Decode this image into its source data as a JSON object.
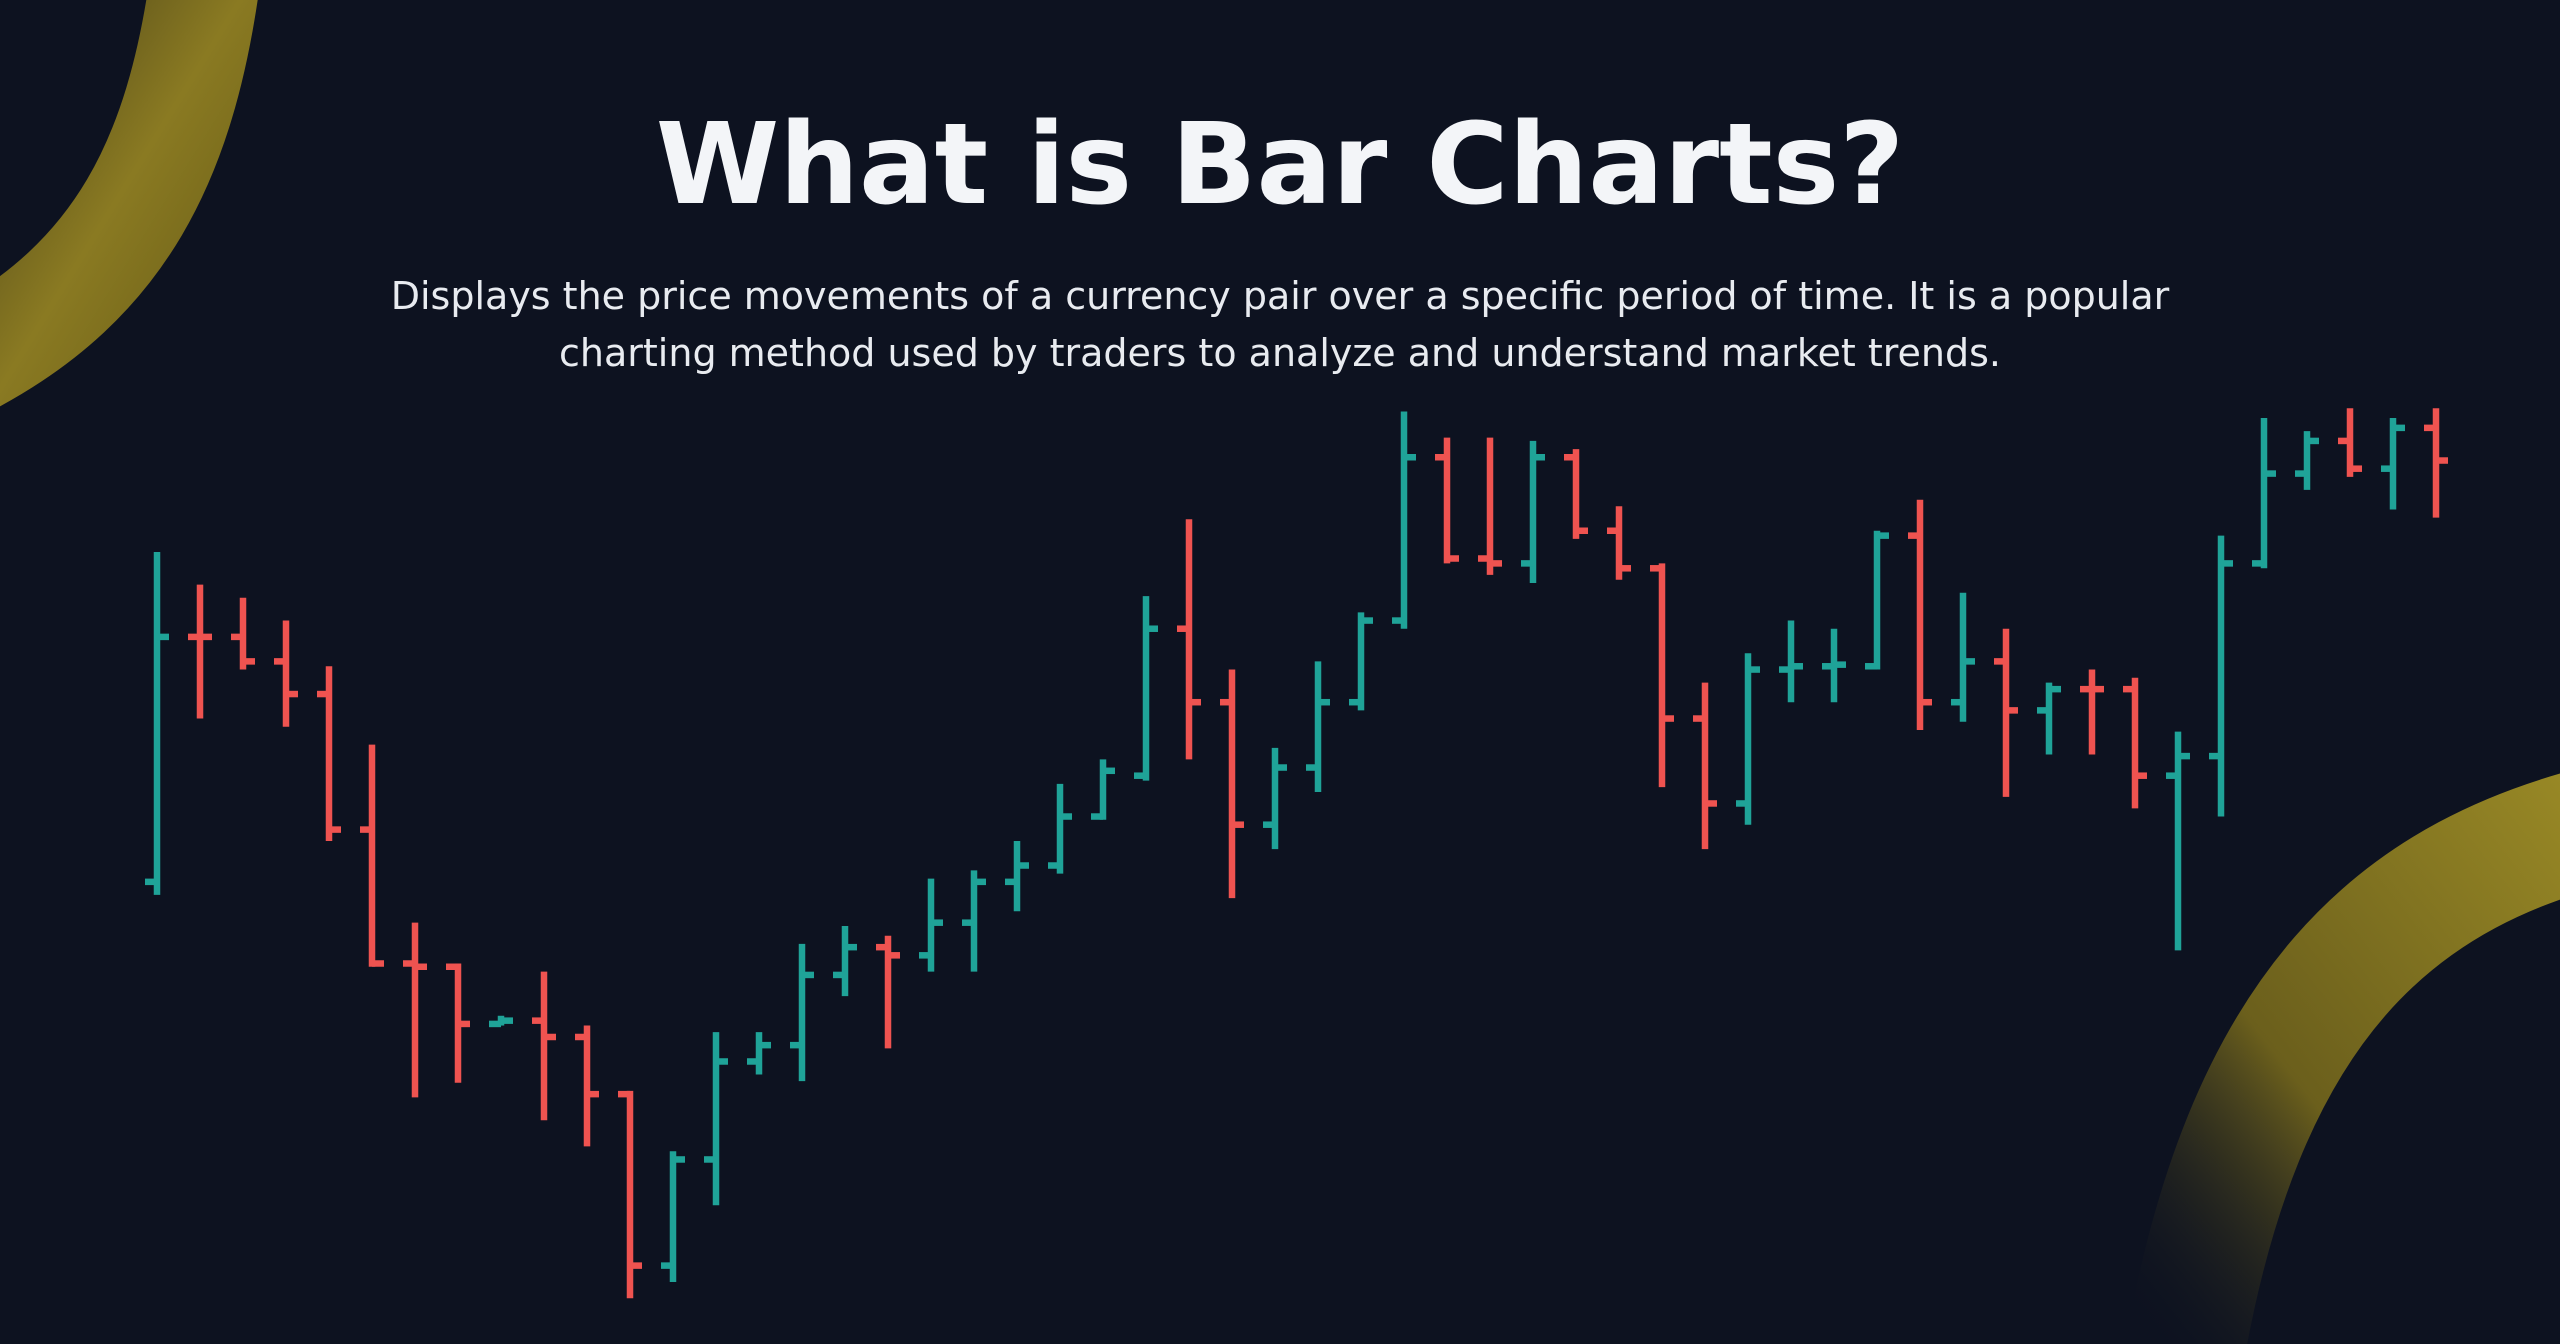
{
  "chart_data": {
    "type": "ohlc",
    "title": "What is Bar Charts?",
    "subtitle": "Displays the price movements of a currency pair over a specific period of time. It is a popular charting method used by traders to analyze and understand market trends.",
    "up_color": "#1fa398",
    "down_color": "#ef5350",
    "ylim": [
      0,
      823
    ],
    "open": [
      283,
      433,
      433,
      418,
      398,
      315,
      233,
      231,
      196,
      198,
      188,
      153,
      48,
      113,
      173,
      183,
      226,
      243,
      238,
      258,
      283,
      293,
      323,
      348,
      438,
      393,
      318,
      353,
      393,
      443,
      543,
      481,
      478,
      543,
      498,
      475,
      383,
      331,
      413,
      415,
      415,
      495,
      393,
      418,
      388,
      401,
      401,
      348,
      360,
      478,
      533,
      553,
      536,
      561
    ],
    "high": [
      485,
      465,
      457,
      443,
      415,
      367,
      258,
      233,
      201,
      228,
      195,
      155,
      118,
      191,
      191,
      245,
      256,
      250,
      285,
      290,
      308,
      343,
      358,
      458,
      505,
      413,
      365,
      418,
      448,
      571,
      555,
      555,
      553,
      548,
      513,
      478,
      405,
      423,
      443,
      438,
      498,
      517,
      460,
      438,
      405,
      413,
      408,
      375,
      495,
      567,
      559,
      573,
      567,
      573
    ],
    "low": [
      275,
      383,
      413,
      378,
      308,
      231,
      151,
      160,
      195,
      137,
      121,
      28,
      38,
      85,
      165,
      161,
      213,
      181,
      228,
      228,
      265,
      288,
      321,
      345,
      358,
      273,
      303,
      338,
      388,
      438,
      478,
      471,
      466,
      493,
      468,
      341,
      303,
      318,
      393,
      393,
      413,
      376,
      381,
      335,
      361,
      361,
      328,
      241,
      323,
      475,
      523,
      531,
      511,
      506
    ],
    "close": [
      433,
      433,
      418,
      398,
      315,
      233,
      231,
      196,
      198,
      188,
      153,
      48,
      113,
      173,
      183,
      226,
      243,
      238,
      258,
      283,
      293,
      323,
      351,
      438,
      393,
      318,
      353,
      393,
      443,
      543,
      481,
      478,
      543,
      498,
      475,
      383,
      331,
      413,
      415,
      416,
      495,
      393,
      418,
      388,
      401,
      401,
      348,
      360,
      478,
      533,
      553,
      536,
      561,
      541
    ]
  }
}
